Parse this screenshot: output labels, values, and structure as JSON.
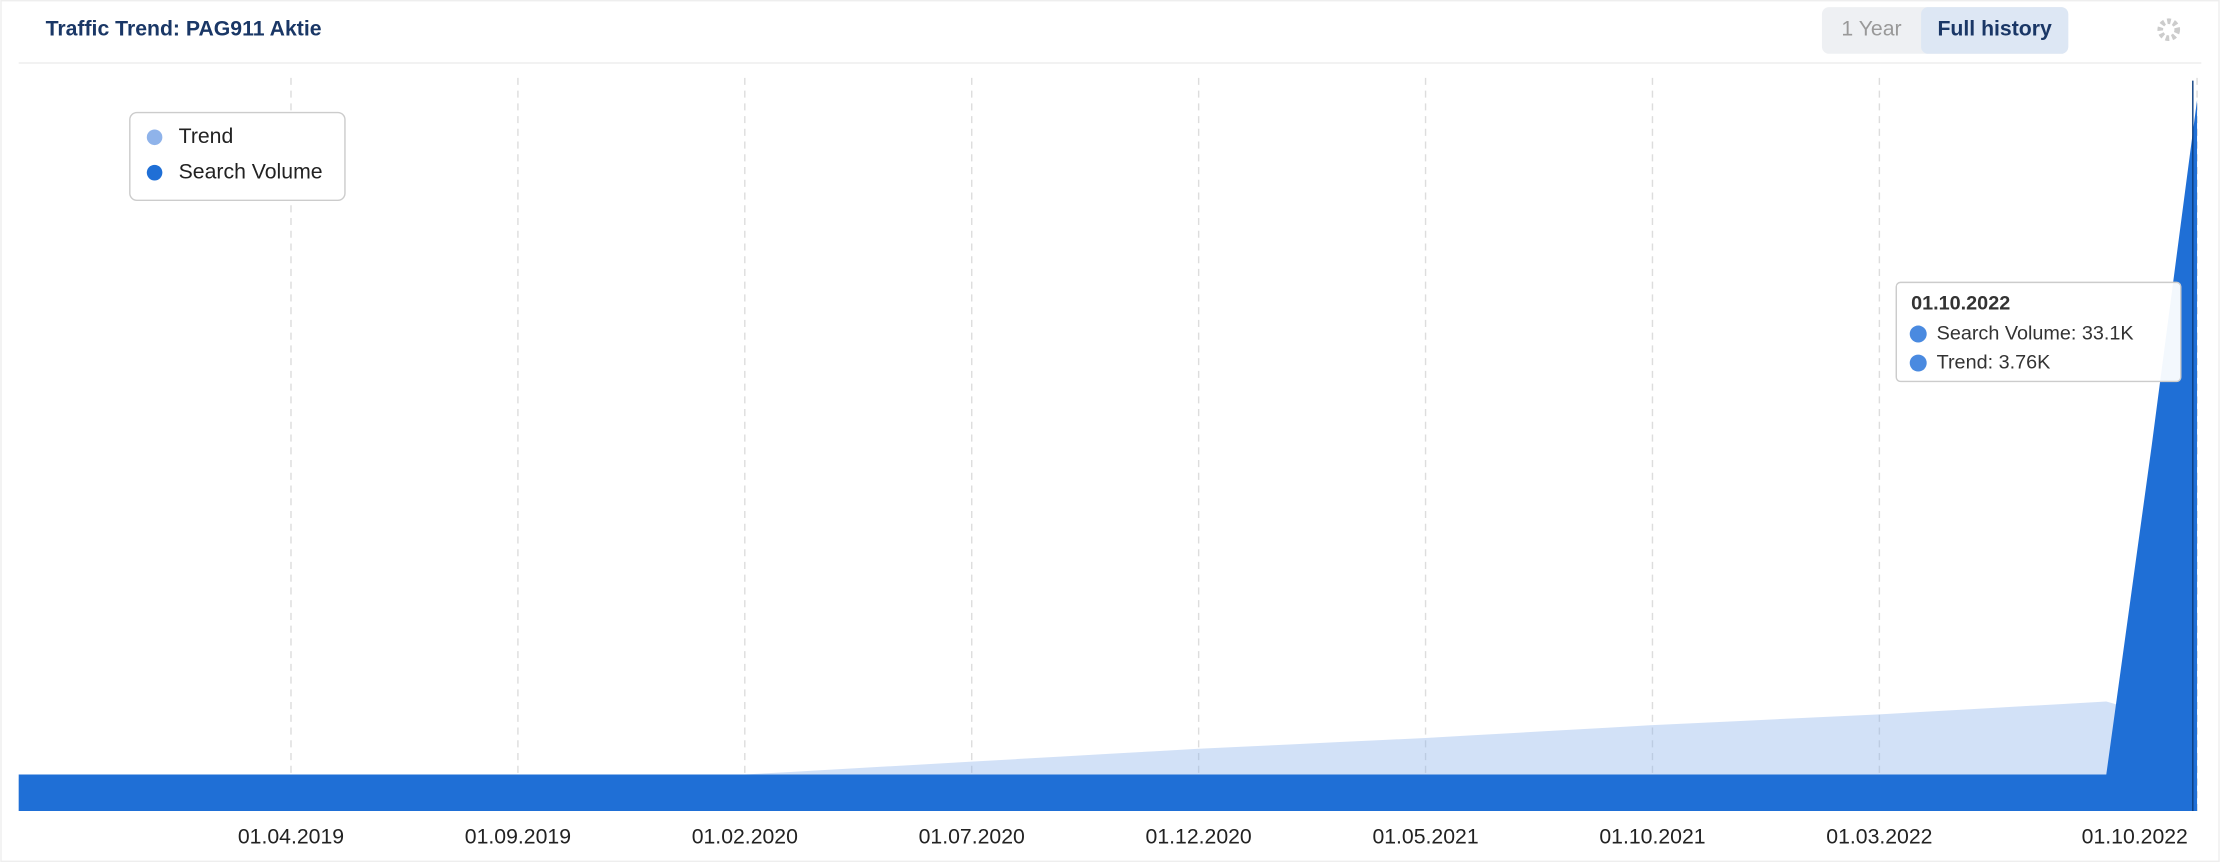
{
  "header": {
    "title": "Traffic Trend: PAG911 Aktie",
    "buttons": [
      "1 Year",
      "Full history"
    ]
  },
  "chart_data": {
    "type": "area",
    "x": [
      "01.10.2018",
      "01.11.2018",
      "01.12.2018",
      "01.01.2019",
      "01.02.2019",
      "01.03.2019",
      "01.04.2019",
      "01.05.2019",
      "01.06.2019",
      "01.07.2019",
      "01.08.2019",
      "01.09.2019",
      "01.10.2019",
      "01.11.2019",
      "01.12.2019",
      "01.01.2020",
      "01.02.2020",
      "01.03.2020",
      "01.04.2020",
      "01.05.2020",
      "01.06.2020",
      "01.07.2020",
      "01.08.2020",
      "01.09.2020",
      "01.10.2020",
      "01.11.2020",
      "01.12.2020",
      "01.01.2021",
      "01.02.2021",
      "01.03.2021",
      "01.04.2021",
      "01.05.2021",
      "01.06.2021",
      "01.07.2021",
      "01.08.2021",
      "01.09.2021",
      "01.10.2021",
      "01.11.2021",
      "01.12.2021",
      "01.01.2022",
      "01.02.2022",
      "01.03.2022",
      "01.04.2022",
      "01.05.2022",
      "01.06.2022",
      "01.07.2022",
      "01.08.2022",
      "01.09.2022",
      "01.10.2022"
    ],
    "series": [
      {
        "name": "Trend",
        "color": "#8fb3ea",
        "values": [
          1500,
          1500,
          1500,
          1500,
          1500,
          1500,
          1500,
          1500,
          1500,
          1500,
          1500,
          1500,
          1500,
          1500,
          1500,
          1500,
          1700,
          1820,
          1940,
          2060,
          2180,
          2300,
          2420,
          2540,
          2660,
          2780,
          2900,
          3000,
          3100,
          3200,
          3300,
          3400,
          3520,
          3640,
          3760,
          3880,
          4000,
          4100,
          4200,
          4300,
          4400,
          4500,
          4620,
          4740,
          4860,
          4980,
          5100,
          4500,
          3760
        ]
      },
      {
        "name": "Search Volume",
        "color": "#1f6fd6",
        "values": [
          1700,
          1700,
          1700,
          1700,
          1700,
          1700,
          1700,
          1700,
          1700,
          1700,
          1700,
          1700,
          1700,
          1700,
          1700,
          1700,
          1700,
          1700,
          1700,
          1700,
          1700,
          1700,
          1700,
          1700,
          1700,
          1700,
          1700,
          1700,
          1700,
          1700,
          1700,
          1700,
          1700,
          1700,
          1700,
          1700,
          1700,
          1700,
          1700,
          1700,
          1700,
          1700,
          1700,
          1700,
          1700,
          1700,
          1700,
          17000,
          33100
        ]
      }
    ],
    "ylim": [
      0,
      34000
    ],
    "xticks": [
      "01.04.2019",
      "01.09.2019",
      "01.02.2020",
      "01.07.2020",
      "01.12.2020",
      "01.05.2021",
      "01.10.2021",
      "01.03.2022",
      "01.10.2022"
    ],
    "grid": true,
    "legend": "top-left",
    "tooltip": {
      "title": "01.10.2022",
      "lines": [
        "Search Volume: 33.1K",
        "Trend: 3.76K"
      ]
    }
  }
}
